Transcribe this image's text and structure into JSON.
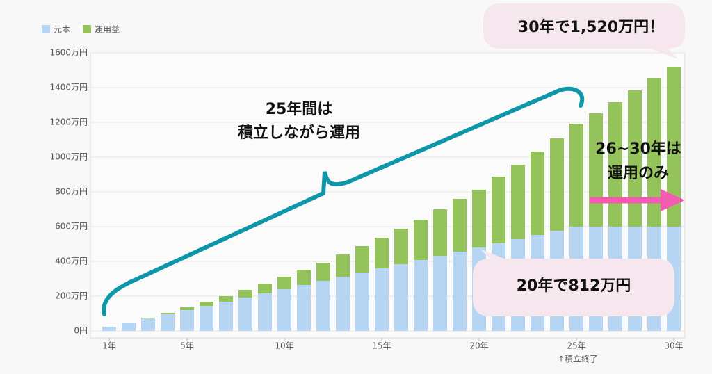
{
  "chart_data": {
    "type": "stacked_bar",
    "categories": [
      "1年",
      null,
      null,
      null,
      "5年",
      null,
      null,
      null,
      null,
      "10年",
      null,
      null,
      null,
      null,
      "15年",
      null,
      null,
      null,
      null,
      "20年",
      null,
      null,
      null,
      null,
      "25年",
      null,
      null,
      null,
      null,
      "30年"
    ],
    "series": [
      {
        "name": "元本",
        "color": "#b6d5f2",
        "values": [
          24,
          48,
          72,
          96,
          120,
          144,
          168,
          192,
          216,
          240,
          264,
          288,
          312,
          336,
          360,
          384,
          408,
          432,
          456,
          480,
          504,
          528,
          552,
          576,
          600,
          600,
          600,
          600,
          600,
          600
        ]
      },
      {
        "name": "運用益",
        "color": "#94c25b",
        "values": [
          0,
          0,
          4,
          8,
          16,
          24,
          32,
          44,
          56,
          72,
          88,
          104,
          128,
          152,
          176,
          204,
          232,
          268,
          304,
          332,
          384,
          428,
          480,
          532,
          592,
          652,
          716,
          784,
          856,
          920
        ]
      }
    ],
    "ylim": [
      0,
      1600
    ],
    "yticks": [
      {
        "value": 0,
        "label": "0円"
      },
      {
        "value": 200,
        "label": "200万円"
      },
      {
        "value": 400,
        "label": "400万円"
      },
      {
        "value": 600,
        "label": "600万円"
      },
      {
        "value": 800,
        "label": "800万円"
      },
      {
        "value": 1000,
        "label": "1000万円"
      },
      {
        "value": 1200,
        "label": "1200万円"
      },
      {
        "value": 1400,
        "label": "1400万円"
      },
      {
        "value": 1600,
        "label": "1600万円"
      }
    ],
    "grid": true,
    "legend": "top-left",
    "annotations": {
      "accumulate": [
        "25年間は",
        "積立しながら運用"
      ],
      "hold": [
        "26~30年は",
        "運用のみ"
      ],
      "final": "30年で1,520万円！",
      "year20": "20年で812万円",
      "end_note": "↑積立終了"
    }
  }
}
